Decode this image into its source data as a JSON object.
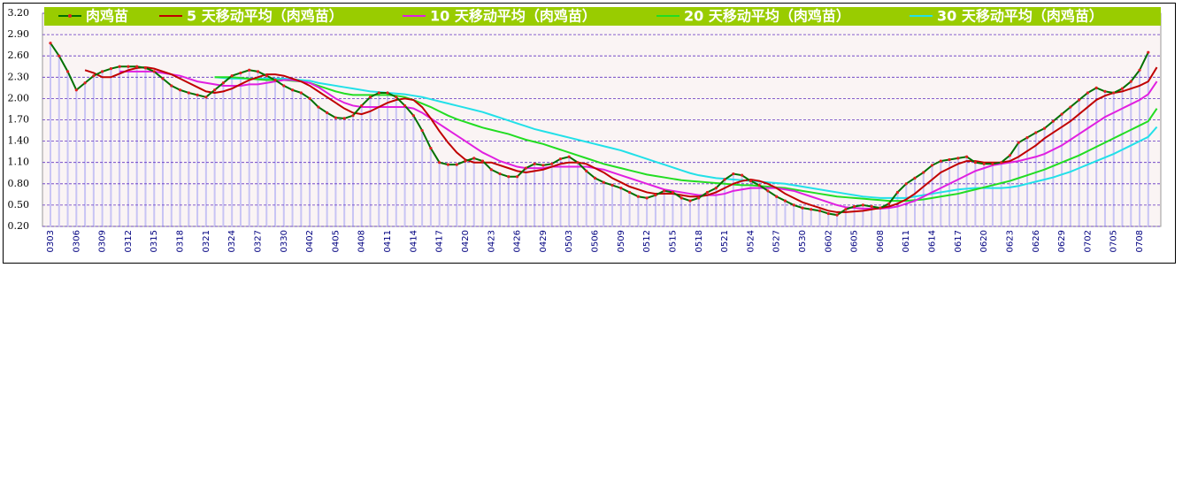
{
  "chart_data": {
    "type": "line",
    "categories": [
      "0303",
      null,
      null,
      "0306",
      null,
      null,
      "0309",
      null,
      null,
      "0312",
      null,
      null,
      "0315",
      null,
      null,
      "0318",
      null,
      null,
      "0321",
      null,
      null,
      "0324",
      null,
      null,
      "0327",
      null,
      null,
      "0330",
      null,
      null,
      "0402",
      null,
      null,
      "0405",
      null,
      null,
      "0408",
      null,
      null,
      "0411",
      null,
      null,
      "0414",
      null,
      null,
      "0417",
      null,
      null,
      "0420",
      null,
      null,
      "0423",
      null,
      null,
      "0426",
      null,
      null,
      "0429",
      null,
      null,
      "0503",
      null,
      null,
      "0506",
      null,
      null,
      "0509",
      null,
      null,
      "0512",
      null,
      null,
      "0515",
      null,
      null,
      "0518",
      null,
      null,
      "0521",
      null,
      null,
      "0524",
      null,
      null,
      "0527",
      null,
      null,
      "0530",
      null,
      null,
      "0602",
      null,
      null,
      "0605",
      null,
      null,
      "0608",
      null,
      null,
      "0611",
      null,
      null,
      "0614",
      null,
      null,
      "0617",
      null,
      null,
      "0620",
      null,
      null,
      "0623",
      null,
      null,
      "0626",
      null,
      null,
      "0629",
      null,
      null,
      "0702",
      null,
      null,
      "0705",
      null,
      null,
      "0708",
      null,
      null
    ],
    "series": [
      {
        "name": "肉鸡苗",
        "color": "#007000",
        "values": [
          2.78,
          2.6,
          2.38,
          2.12,
          2.22,
          2.32,
          2.38,
          2.42,
          2.45,
          2.45,
          2.45,
          2.43,
          2.38,
          2.28,
          2.18,
          2.12,
          2.08,
          2.05,
          2.02,
          2.12,
          2.22,
          2.32,
          2.36,
          2.4,
          2.38,
          2.32,
          2.26,
          2.18,
          2.12,
          2.08,
          2.0,
          1.88,
          1.8,
          1.73,
          1.72,
          1.76,
          1.9,
          2.02,
          2.08,
          2.08,
          2.02,
          1.9,
          1.76,
          1.55,
          1.3,
          1.1,
          1.07,
          1.07,
          1.12,
          1.16,
          1.12,
          1.0,
          0.94,
          0.9,
          0.9,
          1.02,
          1.08,
          1.06,
          1.08,
          1.15,
          1.18,
          1.1,
          0.98,
          0.88,
          0.82,
          0.78,
          0.74,
          0.68,
          0.62,
          0.6,
          0.64,
          0.7,
          0.68,
          0.6,
          0.56,
          0.6,
          0.68,
          0.74,
          0.86,
          0.94,
          0.92,
          0.84,
          0.78,
          0.7,
          0.62,
          0.56,
          0.5,
          0.46,
          0.44,
          0.42,
          0.38,
          0.36,
          0.44,
          0.48,
          0.5,
          0.48,
          0.46,
          0.52,
          0.68,
          0.8,
          0.88,
          0.96,
          1.06,
          1.12,
          1.14,
          1.16,
          1.18,
          1.1,
          1.08,
          1.08,
          1.1,
          1.2,
          1.38,
          1.45,
          1.52,
          1.58,
          1.68,
          1.78,
          1.88,
          1.98,
          2.08,
          2.15,
          2.1,
          2.08,
          2.14,
          2.24,
          2.4,
          2.65,
          null
        ]
      },
      {
        "name": "5 天移动平均（肉鸡苗）",
        "color": "#c00000",
        "values": [
          null,
          null,
          null,
          null,
          2.4,
          2.36,
          2.3,
          2.3,
          2.35,
          2.4,
          2.43,
          2.44,
          2.42,
          2.38,
          2.34,
          2.28,
          2.22,
          2.16,
          2.1,
          2.08,
          2.1,
          2.14,
          2.2,
          2.26,
          2.3,
          2.34,
          2.34,
          2.32,
          2.28,
          2.24,
          2.18,
          2.1,
          2.02,
          1.94,
          1.86,
          1.8,
          1.78,
          1.82,
          1.88,
          1.94,
          1.98,
          2.0,
          1.98,
          1.88,
          1.72,
          1.54,
          1.38,
          1.24,
          1.14,
          1.1,
          1.1,
          1.1,
          1.06,
          1.02,
          0.98,
          0.96,
          0.98,
          1.0,
          1.04,
          1.08,
          1.1,
          1.1,
          1.08,
          1.02,
          0.96,
          0.88,
          0.82,
          0.76,
          0.72,
          0.68,
          0.66,
          0.66,
          0.66,
          0.64,
          0.62,
          0.62,
          0.64,
          0.68,
          0.74,
          0.8,
          0.84,
          0.86,
          0.84,
          0.8,
          0.74,
          0.66,
          0.6,
          0.54,
          0.5,
          0.46,
          0.42,
          0.4,
          0.4,
          0.41,
          0.42,
          0.44,
          0.46,
          0.48,
          0.52,
          0.58,
          0.66,
          0.76,
          0.86,
          0.96,
          1.02,
          1.08,
          1.12,
          1.12,
          1.1,
          1.1,
          1.1,
          1.12,
          1.18,
          1.26,
          1.34,
          1.44,
          1.52,
          1.6,
          1.68,
          1.78,
          1.88,
          1.98,
          2.04,
          2.08,
          2.1,
          2.14,
          2.18,
          2.24,
          2.44
        ]
      },
      {
        "name": "10 天移动平均（肉鸡苗）",
        "color": "#e020e0",
        "values": [
          null,
          null,
          null,
          null,
          null,
          null,
          null,
          null,
          2.38,
          2.38,
          2.38,
          2.38,
          2.38,
          2.36,
          2.34,
          2.32,
          2.28,
          2.24,
          2.22,
          2.2,
          2.18,
          2.18,
          2.18,
          2.2,
          2.2,
          2.22,
          2.24,
          2.26,
          2.26,
          2.24,
          2.22,
          2.16,
          2.08,
          2.0,
          1.94,
          1.9,
          1.88,
          1.88,
          1.88,
          1.88,
          1.88,
          1.88,
          1.86,
          1.8,
          1.72,
          1.64,
          1.56,
          1.48,
          1.4,
          1.32,
          1.24,
          1.18,
          1.12,
          1.08,
          1.04,
          1.02,
          1.02,
          1.02,
          1.04,
          1.04,
          1.04,
          1.04,
          1.04,
          1.02,
          1.0,
          0.96,
          0.92,
          0.88,
          0.84,
          0.8,
          0.76,
          0.72,
          0.7,
          0.68,
          0.66,
          0.64,
          0.64,
          0.64,
          0.66,
          0.7,
          0.72,
          0.74,
          0.74,
          0.74,
          0.74,
          0.72,
          0.7,
          0.66,
          0.62,
          0.58,
          0.54,
          0.5,
          0.47,
          0.46,
          0.45,
          0.45,
          0.45,
          0.46,
          0.48,
          0.52,
          0.56,
          0.62,
          0.68,
          0.74,
          0.8,
          0.86,
          0.92,
          0.98,
          1.02,
          1.06,
          1.08,
          1.1,
          1.12,
          1.15,
          1.18,
          1.22,
          1.28,
          1.34,
          1.42,
          1.5,
          1.58,
          1.66,
          1.74,
          1.8,
          1.86,
          1.92,
          1.98,
          2.06,
          2.24
        ]
      },
      {
        "name": "20 天移动平均（肉鸡苗）",
        "color": "#22dd22",
        "values": [
          null,
          null,
          null,
          null,
          null,
          null,
          null,
          null,
          null,
          null,
          null,
          null,
          null,
          null,
          null,
          null,
          null,
          null,
          null,
          2.3,
          2.3,
          2.3,
          2.29,
          2.28,
          2.27,
          2.26,
          2.26,
          2.26,
          2.25,
          2.24,
          2.22,
          2.18,
          2.14,
          2.1,
          2.07,
          2.05,
          2.05,
          2.05,
          2.05,
          2.05,
          2.04,
          2.02,
          1.98,
          1.93,
          1.88,
          1.82,
          1.76,
          1.71,
          1.67,
          1.63,
          1.59,
          1.56,
          1.53,
          1.5,
          1.46,
          1.42,
          1.39,
          1.36,
          1.32,
          1.28,
          1.24,
          1.2,
          1.16,
          1.12,
          1.08,
          1.05,
          1.02,
          0.99,
          0.96,
          0.93,
          0.91,
          0.89,
          0.87,
          0.85,
          0.84,
          0.83,
          0.82,
          0.81,
          0.8,
          0.79,
          0.78,
          0.78,
          0.77,
          0.76,
          0.75,
          0.74,
          0.72,
          0.7,
          0.68,
          0.66,
          0.64,
          0.62,
          0.61,
          0.6,
          0.59,
          0.58,
          0.57,
          0.56,
          0.56,
          0.56,
          0.57,
          0.58,
          0.6,
          0.62,
          0.64,
          0.66,
          0.69,
          0.72,
          0.75,
          0.78,
          0.81,
          0.84,
          0.88,
          0.92,
          0.96,
          1.0,
          1.05,
          1.1,
          1.15,
          1.2,
          1.26,
          1.32,
          1.38,
          1.44,
          1.5,
          1.56,
          1.62,
          1.68,
          1.86
        ]
      },
      {
        "name": "30 天移动平均（肉鸡苗）",
        "color": "#22e0e8",
        "values": [
          null,
          null,
          null,
          null,
          null,
          null,
          null,
          null,
          null,
          null,
          null,
          null,
          null,
          null,
          null,
          null,
          null,
          null,
          null,
          2.3,
          2.29,
          2.28,
          2.28,
          2.28,
          2.28,
          2.28,
          2.28,
          2.28,
          2.27,
          2.26,
          2.25,
          2.22,
          2.2,
          2.18,
          2.16,
          2.14,
          2.12,
          2.1,
          2.09,
          2.08,
          2.07,
          2.06,
          2.04,
          2.02,
          1.99,
          1.96,
          1.93,
          1.9,
          1.87,
          1.84,
          1.81,
          1.77,
          1.73,
          1.69,
          1.65,
          1.61,
          1.57,
          1.54,
          1.51,
          1.48,
          1.45,
          1.42,
          1.39,
          1.36,
          1.33,
          1.3,
          1.27,
          1.23,
          1.19,
          1.15,
          1.11,
          1.07,
          1.03,
          0.99,
          0.95,
          0.92,
          0.9,
          0.88,
          0.87,
          0.86,
          0.85,
          0.84,
          0.83,
          0.82,
          0.81,
          0.8,
          0.78,
          0.76,
          0.74,
          0.72,
          0.7,
          0.68,
          0.66,
          0.64,
          0.62,
          0.61,
          0.6,
          0.6,
          0.6,
          0.6,
          0.62,
          0.64,
          0.66,
          0.68,
          0.7,
          0.72,
          0.73,
          0.74,
          0.74,
          0.74,
          0.74,
          0.75,
          0.77,
          0.8,
          0.83,
          0.86,
          0.89,
          0.93,
          0.97,
          1.02,
          1.07,
          1.12,
          1.17,
          1.22,
          1.28,
          1.34,
          1.4,
          1.46,
          1.6
        ]
      }
    ],
    "ylim": [
      0.2,
      3.2
    ],
    "yticks": [
      {
        "value": 3.2,
        "label": "3.20"
      },
      {
        "value": 2.9,
        "label": "2.90"
      },
      {
        "value": 2.6,
        "label": "2.60"
      },
      {
        "value": 2.3,
        "label": "2.30"
      },
      {
        "value": 2.0,
        "label": "2.00"
      },
      {
        "value": 1.7,
        "label": "1.70"
      },
      {
        "value": 1.4,
        "label": "1.40"
      },
      {
        "value": 1.1,
        "label": "1.10"
      },
      {
        "value": 0.8,
        "label": "0.80"
      },
      {
        "value": 0.5,
        "label": "0.50"
      },
      {
        "value": 0.2,
        "label": "0.20"
      }
    ],
    "grid": true,
    "legend": "top"
  }
}
